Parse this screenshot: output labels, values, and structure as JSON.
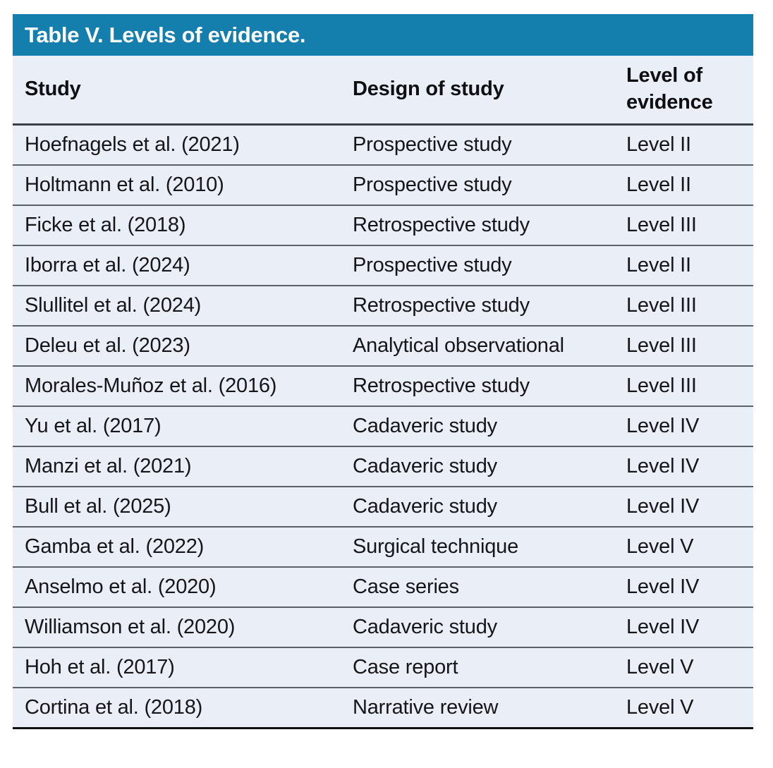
{
  "table": {
    "title": "Table V. Levels of evidence.",
    "columns": [
      "Study",
      "Design of study",
      "Level of evidence"
    ],
    "rows": [
      {
        "study": "Hoefnagels et al. (2021)",
        "design": "Prospective study",
        "level": "Level II"
      },
      {
        "study": "Holtmann et al. (2010)",
        "design": "Prospective study",
        "level": "Level II"
      },
      {
        "study": "Ficke et al. (2018)",
        "design": "Retrospective study",
        "level": "Level III"
      },
      {
        "study": "Iborra et al. (2024)",
        "design": "Prospective study",
        "level": "Level II"
      },
      {
        "study": "Slullitel et al. (2024)",
        "design": "Retrospective study",
        "level": "Level III"
      },
      {
        "study": "Deleu et al. (2023)",
        "design": "Analytical observational",
        "level": "Level III"
      },
      {
        "study": "Morales-Muñoz et al. (2016)",
        "design": "Retrospective study",
        "level": "Level III"
      },
      {
        "study": "Yu et al. (2017)",
        "design": "Cadaveric study",
        "level": "Level IV"
      },
      {
        "study": "Manzi et al. (2021)",
        "design": "Cadaveric study",
        "level": "Level IV"
      },
      {
        "study": "Bull et al. (2025)",
        "design": "Cadaveric study",
        "level": "Level IV"
      },
      {
        "study": "Gamba et al. (2022)",
        "design": "Surgical technique",
        "level": "Level V"
      },
      {
        "study": "Anselmo et al. (2020)",
        "design": "Case series",
        "level": "Level IV"
      },
      {
        "study": "Williamson et al. (2020)",
        "design": "Cadaveric study",
        "level": "Level IV"
      },
      {
        "study": "Hoh et al. (2017)",
        "design": "Case report",
        "level": "Level V"
      },
      {
        "study": "Cortina et al. (2018)",
        "design": "Narrative review",
        "level": "Level V"
      }
    ]
  },
  "colors": {
    "title_bar_background": "#147fad",
    "title_text": "#ffffff",
    "table_background": "#e9eef7",
    "header_text": "#0e0f12",
    "body_text": "#15161a",
    "row_divider": "#5a616a",
    "header_divider": "#3b4047",
    "bottom_border": "#101113"
  }
}
